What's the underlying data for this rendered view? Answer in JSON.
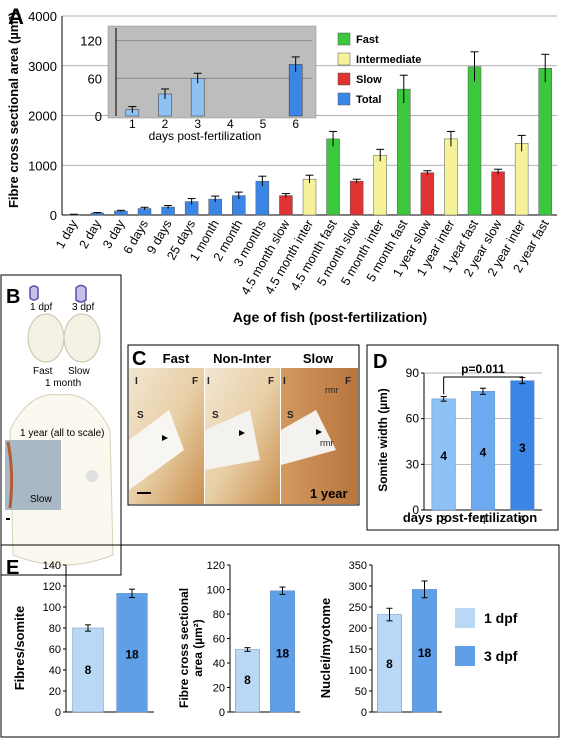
{
  "panel_labels": {
    "a": "A",
    "b": "B",
    "c": "C",
    "d": "D",
    "e": "E"
  },
  "colors": {
    "fast": "#3cc83c",
    "intermediate": "#f6f29a",
    "slow": "#e03232",
    "total": "#3a86e6",
    "total_light": "#8ec1f4",
    "d_light": "#8ec1f4",
    "d_mid": "#6eaaf0",
    "d_dark": "#3a86e6",
    "e_1dpf": "#b9d8f6",
    "e_3dpf": "#5f9fe8",
    "inset_bg": "#bdbdbd"
  },
  "chart_data": [
    {
      "id": "A",
      "type": "bar",
      "ylabel": "Fibre cross sectional area (µm²)",
      "xlabel": "Age of fish (post-fertilization)",
      "ylim": [
        0,
        4000
      ],
      "yticks": [
        0,
        1000,
        2000,
        3000,
        4000
      ],
      "grid": true,
      "legend": [
        "Fast",
        "Intermediate",
        "Slow",
        "Total"
      ],
      "categories": [
        "1 day",
        "2 day",
        "3 day",
        "6 days",
        "9 days",
        "25 days",
        "1 month",
        "2 month",
        "3 months",
        "4.5 month slow",
        "4.5 month inter",
        "4.5 month fast",
        "5 month slow",
        "5 month inter",
        "5 month fast",
        "1 year slow",
        "1 year inter",
        "1 year fast",
        "2 year slow",
        "2 year inter",
        "2 year fast"
      ],
      "types": [
        "total",
        "total",
        "total",
        "total",
        "total",
        "total",
        "total",
        "total",
        "total",
        "slow",
        "inter",
        "fast",
        "slow",
        "inter",
        "fast",
        "slow",
        "inter",
        "fast",
        "slow",
        "inter",
        "fast"
      ],
      "values": [
        10,
        40,
        80,
        130,
        160,
        270,
        320,
        390,
        680,
        390,
        720,
        1530,
        680,
        1200,
        2530,
        850,
        1530,
        2980,
        870,
        1440,
        2950
      ],
      "errors": [
        5,
        10,
        15,
        25,
        30,
        60,
        60,
        70,
        100,
        40,
        80,
        150,
        40,
        120,
        280,
        40,
        150,
        300,
        50,
        160,
        280
      ]
    },
    {
      "id": "A-inset",
      "type": "bar",
      "xlabel": "days post-fertilization",
      "ylim": [
        0,
        140
      ],
      "yticks": [
        0,
        60,
        120
      ],
      "categories": [
        "1",
        "2",
        "3",
        "4",
        "5",
        "6"
      ],
      "values": [
        10,
        35,
        60,
        null,
        null,
        82
      ],
      "errors": [
        5,
        8,
        8,
        null,
        null,
        12
      ]
    },
    {
      "id": "D",
      "type": "bar",
      "ylabel": "Somite width (µm)",
      "xlabel": "days post-fertilization",
      "ylim": [
        0,
        90
      ],
      "yticks": [
        0,
        30,
        60,
        90
      ],
      "categories": [
        "3",
        "4",
        "6"
      ],
      "values": [
        73,
        78,
        85
      ],
      "errors": [
        1.5,
        2,
        2
      ],
      "n_labels": [
        "4",
        "4",
        "3"
      ],
      "annotation": "p=0.011"
    },
    {
      "id": "E1",
      "type": "bar",
      "ylabel": "Fibres/somite",
      "ylim": [
        0,
        140
      ],
      "yticks": [
        0,
        20,
        40,
        60,
        80,
        100,
        120,
        140
      ],
      "categories": [
        "1 dpf",
        "3 dpf"
      ],
      "values": [
        80,
        113
      ],
      "errors": [
        3,
        4
      ],
      "n_labels": [
        "8",
        "18"
      ]
    },
    {
      "id": "E2",
      "type": "bar",
      "ylabel": "Fibre cross sectional area (µm²)",
      "ylim": [
        0,
        120
      ],
      "yticks": [
        0,
        20,
        40,
        60,
        80,
        100,
        120
      ],
      "categories": [
        "1 dpf",
        "3 dpf"
      ],
      "values": [
        51,
        99
      ],
      "errors": [
        1.5,
        3
      ],
      "n_labels": [
        "8",
        "18"
      ]
    },
    {
      "id": "E3",
      "type": "bar",
      "ylabel": "Nuclei/myotome",
      "ylim": [
        0,
        350
      ],
      "yticks": [
        0,
        50,
        100,
        150,
        200,
        250,
        300,
        350
      ],
      "categories": [
        "1 dpf",
        "3 dpf"
      ],
      "values": [
        232,
        292
      ],
      "errors": [
        15,
        20
      ],
      "n_labels": [
        "8",
        "18"
      ],
      "legend": [
        "1 dpf",
        "3 dpf"
      ]
    }
  ],
  "panel_b": {
    "label_1dpf": "1 dpf",
    "label_3dpf": "3 dpf",
    "label_fast": "Fast",
    "label_slow": "Slow",
    "label_1month": "1 month",
    "label_1year": "1 year (all to scale)",
    "label_slow_inset": "Slow"
  },
  "panel_c": {
    "headers": [
      "Fast",
      "Non-Inter",
      "Slow"
    ],
    "tile_letters": [
      "I",
      "F",
      "S"
    ],
    "rmr": "rmr",
    "year_label": "1 year"
  }
}
